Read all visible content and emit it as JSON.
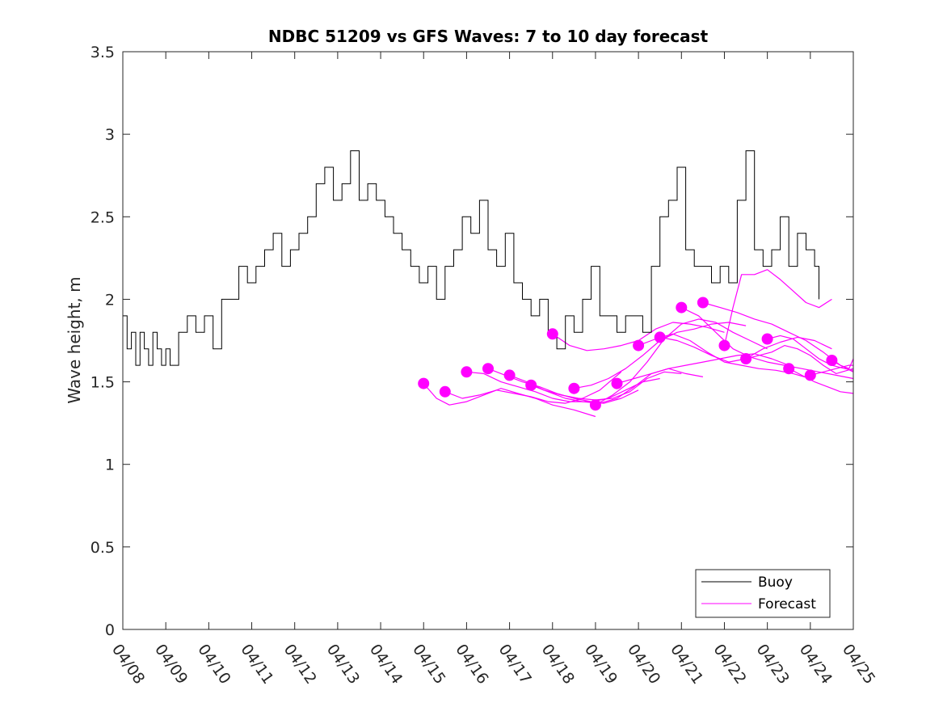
{
  "chart_data": {
    "type": "line",
    "title": "NDBC 51209 vs GFS Waves: 7 to 10 day forecast",
    "xlabel": "",
    "ylabel": "Wave height, m",
    "xlim": [
      0,
      17
    ],
    "ylim": [
      0,
      3.5
    ],
    "x_ticks": [
      "04/08",
      "04/09",
      "04/10",
      "04/11",
      "04/12",
      "04/13",
      "04/14",
      "04/15",
      "04/16",
      "04/17",
      "04/18",
      "04/19",
      "04/20",
      "04/21",
      "04/22",
      "04/23",
      "04/24",
      "04/25"
    ],
    "y_ticks": [
      "0",
      "0.5",
      "1",
      "1.5",
      "2",
      "2.5",
      "3",
      "3.5"
    ],
    "legend": {
      "position": "bottom-right",
      "entries": [
        "Buoy",
        "Forecast"
      ]
    },
    "colors": {
      "buoy": "#000000",
      "forecast": "#ff00ff"
    },
    "series": [
      {
        "name": "Buoy",
        "x": [
          0.0,
          0.1,
          0.2,
          0.3,
          0.4,
          0.5,
          0.6,
          0.7,
          0.8,
          0.9,
          1.0,
          1.1,
          1.3,
          1.5,
          1.7,
          1.9,
          2.1,
          2.3,
          2.5,
          2.7,
          2.9,
          3.1,
          3.3,
          3.5,
          3.7,
          3.9,
          4.1,
          4.3,
          4.5,
          4.7,
          4.9,
          5.1,
          5.3,
          5.5,
          5.7,
          5.9,
          6.1,
          6.3,
          6.5,
          6.7,
          6.9,
          7.1,
          7.3,
          7.5,
          7.7,
          7.9,
          8.1,
          8.3,
          8.5,
          8.7,
          8.9,
          9.1,
          9.3,
          9.5,
          9.7,
          9.9,
          10.1,
          10.3,
          10.5,
          10.7,
          10.9,
          11.1,
          11.3,
          11.5,
          11.7,
          11.9,
          12.1,
          12.3,
          12.5,
          12.7,
          12.9,
          13.1,
          13.3,
          13.5,
          13.7,
          13.9,
          14.1,
          14.3,
          14.5,
          14.7,
          14.9,
          15.1,
          15.3,
          15.5,
          15.7,
          15.9,
          16.1,
          16.2
        ],
        "y": [
          1.9,
          1.7,
          1.8,
          1.6,
          1.8,
          1.7,
          1.6,
          1.8,
          1.7,
          1.6,
          1.7,
          1.6,
          1.8,
          1.9,
          1.8,
          1.9,
          1.7,
          2.0,
          2.0,
          2.2,
          2.1,
          2.2,
          2.3,
          2.4,
          2.2,
          2.3,
          2.4,
          2.5,
          2.7,
          2.8,
          2.6,
          2.7,
          2.9,
          2.6,
          2.7,
          2.6,
          2.5,
          2.4,
          2.3,
          2.2,
          2.1,
          2.2,
          2.0,
          2.2,
          2.3,
          2.5,
          2.4,
          2.6,
          2.3,
          2.2,
          2.4,
          2.1,
          2.0,
          1.9,
          2.0,
          1.8,
          1.7,
          1.9,
          1.8,
          2.0,
          2.2,
          1.9,
          1.9,
          1.8,
          1.9,
          1.9,
          1.8,
          2.2,
          2.5,
          2.6,
          2.8,
          2.3,
          2.2,
          2.2,
          2.1,
          2.2,
          2.1,
          2.6,
          2.9,
          2.3,
          2.2,
          2.3,
          2.5,
          2.2,
          2.4,
          2.3,
          2.2,
          2.0
        ]
      }
    ],
    "forecast_runs": [
      {
        "x": [
          7.0,
          7.3,
          7.6,
          8.0,
          8.4,
          8.8,
          9.2,
          9.6,
          10.0,
          10.5,
          11.0
        ],
        "y": [
          1.49,
          1.4,
          1.36,
          1.38,
          1.42,
          1.46,
          1.43,
          1.4,
          1.36,
          1.33,
          1.29
        ]
      },
      {
        "x": [
          7.5,
          7.9,
          8.3,
          8.7,
          9.1,
          9.5,
          9.9,
          10.3,
          10.7,
          11.1,
          11.6
        ],
        "y": [
          1.44,
          1.4,
          1.42,
          1.45,
          1.43,
          1.41,
          1.38,
          1.37,
          1.4,
          1.45,
          1.56
        ]
      },
      {
        "x": [
          8.0,
          8.4,
          8.8,
          9.2,
          9.6,
          10.0,
          10.4,
          10.8,
          11.2,
          11.6,
          12.0
        ],
        "y": [
          1.56,
          1.55,
          1.5,
          1.47,
          1.44,
          1.4,
          1.38,
          1.38,
          1.37,
          1.4,
          1.45
        ]
      },
      {
        "x": [
          8.5,
          8.9,
          9.3,
          9.7,
          10.1,
          10.5,
          10.9,
          11.3,
          11.7,
          12.1,
          12.5
        ],
        "y": [
          1.58,
          1.54,
          1.5,
          1.47,
          1.43,
          1.4,
          1.38,
          1.4,
          1.45,
          1.5,
          1.52
        ]
      },
      {
        "x": [
          9.0,
          9.4,
          9.8,
          10.2,
          10.6,
          11.0,
          11.4,
          11.8,
          12.2,
          12.6,
          13.0
        ],
        "y": [
          1.54,
          1.5,
          1.45,
          1.42,
          1.4,
          1.39,
          1.4,
          1.44,
          1.52,
          1.56,
          1.55
        ]
      },
      {
        "x": [
          9.5,
          9.9,
          10.3,
          10.7,
          11.1,
          11.5,
          11.9,
          12.3,
          12.7,
          13.1,
          13.5
        ],
        "y": [
          1.48,
          1.44,
          1.4,
          1.38,
          1.37,
          1.4,
          1.47,
          1.55,
          1.58,
          1.55,
          1.53
        ]
      },
      {
        "x": [
          10.0,
          10.4,
          10.8,
          11.2,
          11.6,
          12.0,
          12.4,
          12.8,
          13.2,
          13.6,
          14.0
        ],
        "y": [
          1.79,
          1.72,
          1.69,
          1.7,
          1.72,
          1.75,
          1.82,
          1.86,
          1.85,
          1.83,
          1.8
        ]
      },
      {
        "x": [
          10.5,
          10.9,
          11.3,
          11.7,
          12.1,
          12.5,
          12.9,
          13.3,
          13.7,
          14.1,
          14.5
        ],
        "y": [
          1.46,
          1.48,
          1.52,
          1.58,
          1.66,
          1.75,
          1.8,
          1.82,
          1.85,
          1.86,
          1.84
        ]
      },
      {
        "x": [
          11.0,
          11.4,
          11.8,
          12.2,
          12.6,
          13.0,
          13.4,
          13.8,
          14.2,
          14.6,
          15.0
        ],
        "y": [
          1.36,
          1.42,
          1.5,
          1.62,
          1.76,
          1.85,
          1.88,
          1.86,
          1.8,
          1.75,
          1.7
        ]
      },
      {
        "x": [
          11.5,
          11.9,
          12.3,
          12.7,
          13.1,
          13.5,
          13.9,
          14.3,
          14.7,
          15.1,
          15.5
        ],
        "y": [
          1.49,
          1.52,
          1.55,
          1.58,
          1.6,
          1.62,
          1.64,
          1.66,
          1.67,
          1.64,
          1.6
        ]
      },
      {
        "x": [
          12.0,
          12.4,
          12.8,
          13.2,
          13.6,
          14.0,
          14.4,
          14.8,
          15.2,
          15.6,
          16.0
        ],
        "y": [
          1.72,
          1.76,
          1.79,
          1.75,
          1.68,
          1.62,
          1.6,
          1.58,
          1.57,
          1.55,
          1.52
        ]
      },
      {
        "x": [
          12.5,
          12.9,
          13.3,
          13.7,
          14.1,
          14.5,
          14.9,
          15.3,
          15.7,
          16.1,
          16.5
        ],
        "y": [
          1.77,
          1.75,
          1.71,
          1.66,
          1.62,
          1.64,
          1.7,
          1.74,
          1.77,
          1.75,
          1.7
        ]
      },
      {
        "x": [
          13.0,
          13.4,
          13.8,
          14.2,
          14.6,
          15.0,
          15.4,
          15.8,
          16.2,
          16.6,
          17.0
        ],
        "y": [
          1.95,
          1.9,
          1.8,
          1.7,
          1.65,
          1.62,
          1.6,
          1.58,
          1.56,
          1.54,
          1.52
        ]
      },
      {
        "x": [
          13.5,
          13.9,
          14.3,
          14.7,
          15.1,
          15.5,
          15.9,
          16.3,
          16.7,
          17.0
        ],
        "y": [
          1.98,
          1.95,
          1.92,
          1.88,
          1.85,
          1.8,
          1.75,
          1.68,
          1.6,
          1.56
        ]
      },
      {
        "x": [
          14.0,
          14.2,
          14.4,
          14.7,
          15.0,
          15.3,
          15.6,
          15.9,
          16.2,
          16.5
        ],
        "y": [
          1.72,
          1.95,
          2.15,
          2.15,
          2.18,
          2.12,
          2.05,
          1.98,
          1.95,
          2.0
        ]
      },
      {
        "x": [
          14.5,
          14.8,
          15.1,
          15.4,
          15.7,
          16.0,
          16.3,
          16.6,
          17.0
        ],
        "y": [
          1.64,
          1.66,
          1.68,
          1.72,
          1.7,
          1.66,
          1.6,
          1.55,
          1.58
        ]
      },
      {
        "x": [
          15.0,
          15.3,
          15.6,
          15.9,
          16.2,
          16.5,
          16.8,
          17.0
        ],
        "y": [
          1.76,
          1.78,
          1.76,
          1.7,
          1.64,
          1.6,
          1.58,
          1.57
        ]
      },
      {
        "x": [
          15.5,
          15.8,
          16.1,
          16.4,
          16.7,
          17.0
        ],
        "y": [
          1.58,
          1.54,
          1.5,
          1.47,
          1.44,
          1.43
        ]
      },
      {
        "x": [
          16.0,
          16.3,
          16.6,
          16.9,
          17.0
        ],
        "y": [
          1.54,
          1.56,
          1.58,
          1.6,
          1.6
        ]
      },
      {
        "x": [
          16.5,
          16.7,
          16.9,
          17.0
        ],
        "y": [
          1.63,
          1.6,
          1.58,
          1.64
        ]
      }
    ],
    "forecast_markers": {
      "x": [
        7.0,
        7.5,
        8.0,
        8.5,
        9.0,
        9.5,
        10.0,
        10.5,
        11.0,
        11.5,
        12.0,
        12.5,
        13.0,
        13.5,
        14.0,
        14.5,
        15.0,
        15.5,
        16.0,
        16.5
      ],
      "y": [
        1.49,
        1.44,
        1.56,
        1.58,
        1.54,
        1.48,
        1.79,
        1.46,
        1.36,
        1.49,
        1.72,
        1.77,
        1.95,
        1.98,
        1.72,
        1.64,
        1.76,
        1.58,
        1.54,
        1.63
      ]
    }
  }
}
